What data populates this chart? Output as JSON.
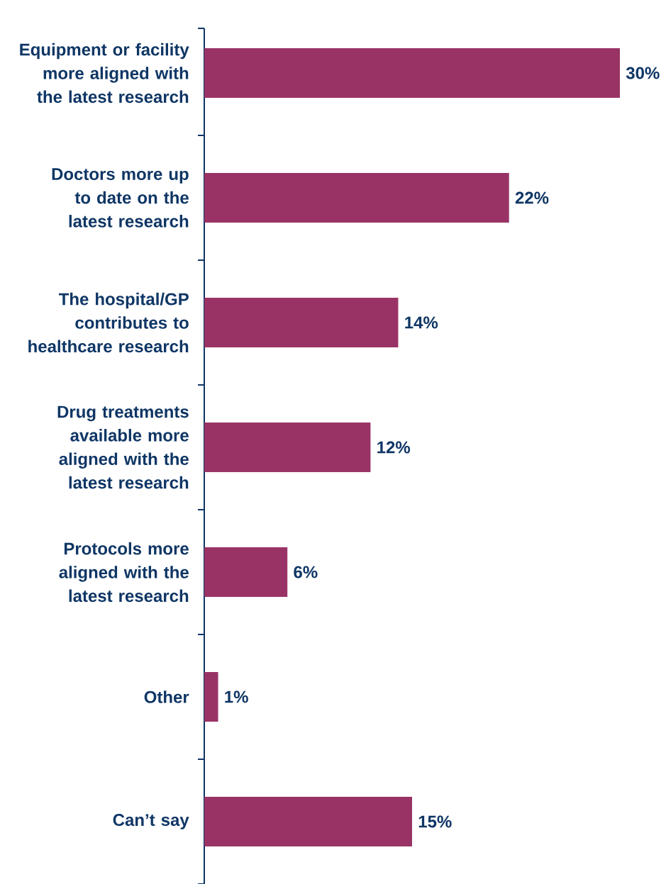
{
  "chart_data": {
    "type": "bar",
    "orientation": "horizontal",
    "categories": [
      "Equipment or facility more aligned with the latest research",
      "Doctors more up to date on the latest research",
      "The hospital/GP contributes to healthcare research",
      "Drug treatments available more aligned with the latest research",
      "Protocols more aligned with the latest research",
      "Other",
      "Can’t say"
    ],
    "values": [
      30,
      22,
      14,
      12,
      6,
      1,
      15
    ],
    "value_labels": [
      "30%",
      "22%",
      "14%",
      "12%",
      "6%",
      "1%",
      "15%"
    ],
    "color": "#993366"
  }
}
